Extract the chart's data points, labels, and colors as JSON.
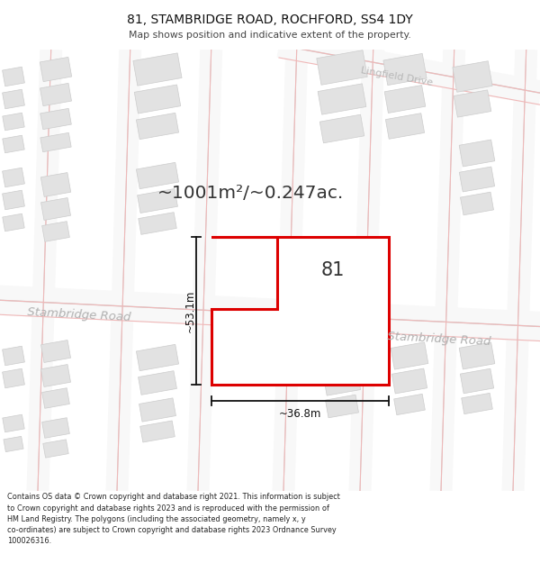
{
  "title": "81, STAMBRIDGE ROAD, ROCHFORD, SS4 1DY",
  "subtitle": "Map shows position and indicative extent of the property.",
  "area_label": "~1001m²/~0.247ac.",
  "dim_vertical": "~53.1m",
  "dim_horizontal": "~36.8m",
  "label_81": "81",
  "street1": "Stambridge Road",
  "street2": "Stambridge Road",
  "street3": "Lingfield Drive",
  "copyright": "Contains OS data © Crown copyright and database right 2021. This information is subject\nto Crown copyright and database rights 2023 and is reproduced with the permission of\nHM Land Registry. The polygons (including the associated geometry, namely x, y\nco-ordinates) are subject to Crown copyright and database rights 2023 Ordnance Survey\n100026316.",
  "bg_color": "#ffffff",
  "map_bg": "#ffffff",
  "property_color": "#dd0000",
  "building_fill": "#e2e2e2",
  "building_edge": "#cccccc",
  "road_line_color": "#f0b8b8",
  "street_label_color": "#b0b0b0",
  "text_color": "#222222",
  "dim_color": "#111111"
}
